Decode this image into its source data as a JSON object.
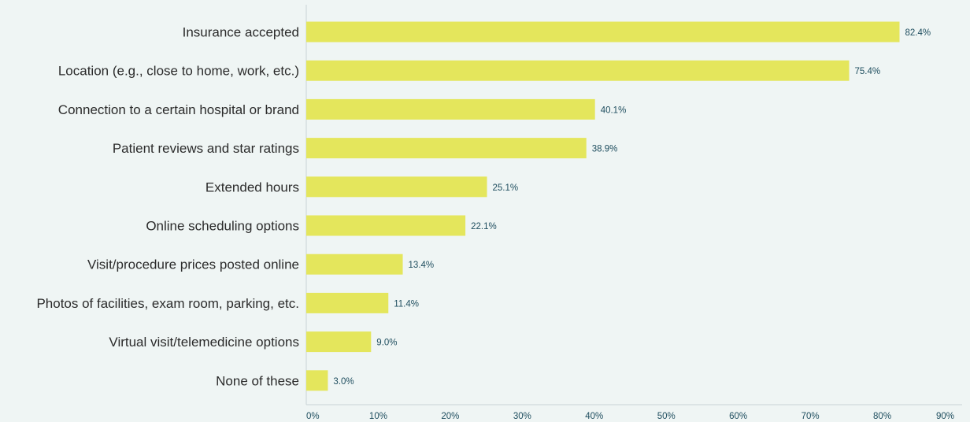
{
  "chart_data": {
    "type": "bar",
    "orientation": "horizontal",
    "title": "",
    "xlabel": "",
    "ylabel": "",
    "categories": [
      "Insurance accepted",
      "Location (e.g., close to home, work, etc.)",
      "Connection to a certain hospital or brand",
      "Patient reviews and star ratings",
      "Extended hours",
      "Online scheduling options",
      "Visit/procedure prices posted online",
      "Photos of facilities, exam room, parking, etc.",
      "Virtual visit/telemedicine options",
      "None of these"
    ],
    "values": [
      82.4,
      75.4,
      40.1,
      38.9,
      25.1,
      22.1,
      13.4,
      11.4,
      9.0,
      3.0
    ],
    "value_labels": [
      "82.4%",
      "75.4%",
      "40.1%",
      "38.9%",
      "25.1%",
      "22.1%",
      "13.4%",
      "11.4%",
      "9.0%",
      "3.0%"
    ],
    "xlim": [
      0,
      90
    ],
    "x_ticks": [
      0,
      10,
      20,
      30,
      40,
      50,
      60,
      70,
      80,
      90
    ],
    "x_tick_labels": [
      "0%",
      "10%",
      "20%",
      "30%",
      "40%",
      "50%",
      "60%",
      "70%",
      "80%",
      "90%"
    ],
    "grid": false,
    "legend": "none",
    "colors": {
      "bar": "#e4e65c",
      "background": "#eff5f4",
      "axis": "#c9d3d6",
      "label_text": "#2b2b2b",
      "value_text": "#1f4e5f"
    }
  }
}
